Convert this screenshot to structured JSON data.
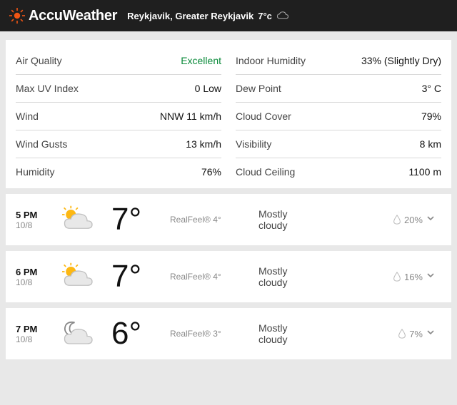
{
  "colors": {
    "accent": "#f05514",
    "excellent": "#0a8a3a",
    "header_bg": "#1f1f1f",
    "card_bg": "#ffffff",
    "page_bg": "#e8e8e8",
    "text_muted": "#888888",
    "divider": "#d9d9d9"
  },
  "header": {
    "brand": "AccuWeather",
    "location": "Reykjavik, Greater Reykjavik",
    "temp": "7°c"
  },
  "conditions": {
    "left": [
      {
        "label": "Air Quality",
        "value": "Excellent",
        "highlight": true
      },
      {
        "label": "Max UV Index",
        "value": "0 Low"
      },
      {
        "label": "Wind",
        "value": "NNW 11 km/h"
      },
      {
        "label": "Wind Gusts",
        "value": "13 km/h"
      },
      {
        "label": "Humidity",
        "value": "76%"
      }
    ],
    "right": [
      {
        "label": "Indoor Humidity",
        "value": "33% (Slightly Dry)"
      },
      {
        "label": "Dew Point",
        "value": "3° C"
      },
      {
        "label": "Cloud Cover",
        "value": "79%"
      },
      {
        "label": "Visibility",
        "value": "8 km"
      },
      {
        "label": "Cloud Ceiling",
        "value": "1100 m"
      }
    ]
  },
  "hourly": [
    {
      "time": "5 PM",
      "date": "10/8",
      "icon": "partly-sunny",
      "temp": "7°",
      "realfeel": "RealFeel® 4°",
      "cond": "Mostly cloudy",
      "precip": "20%"
    },
    {
      "time": "6 PM",
      "date": "10/8",
      "icon": "partly-sunny",
      "temp": "7°",
      "realfeel": "RealFeel® 4°",
      "cond": "Mostly cloudy",
      "precip": "16%"
    },
    {
      "time": "7 PM",
      "date": "10/8",
      "icon": "night-cloudy",
      "temp": "6°",
      "realfeel": "RealFeel® 3°",
      "cond": "Mostly cloudy",
      "precip": "7%"
    }
  ]
}
